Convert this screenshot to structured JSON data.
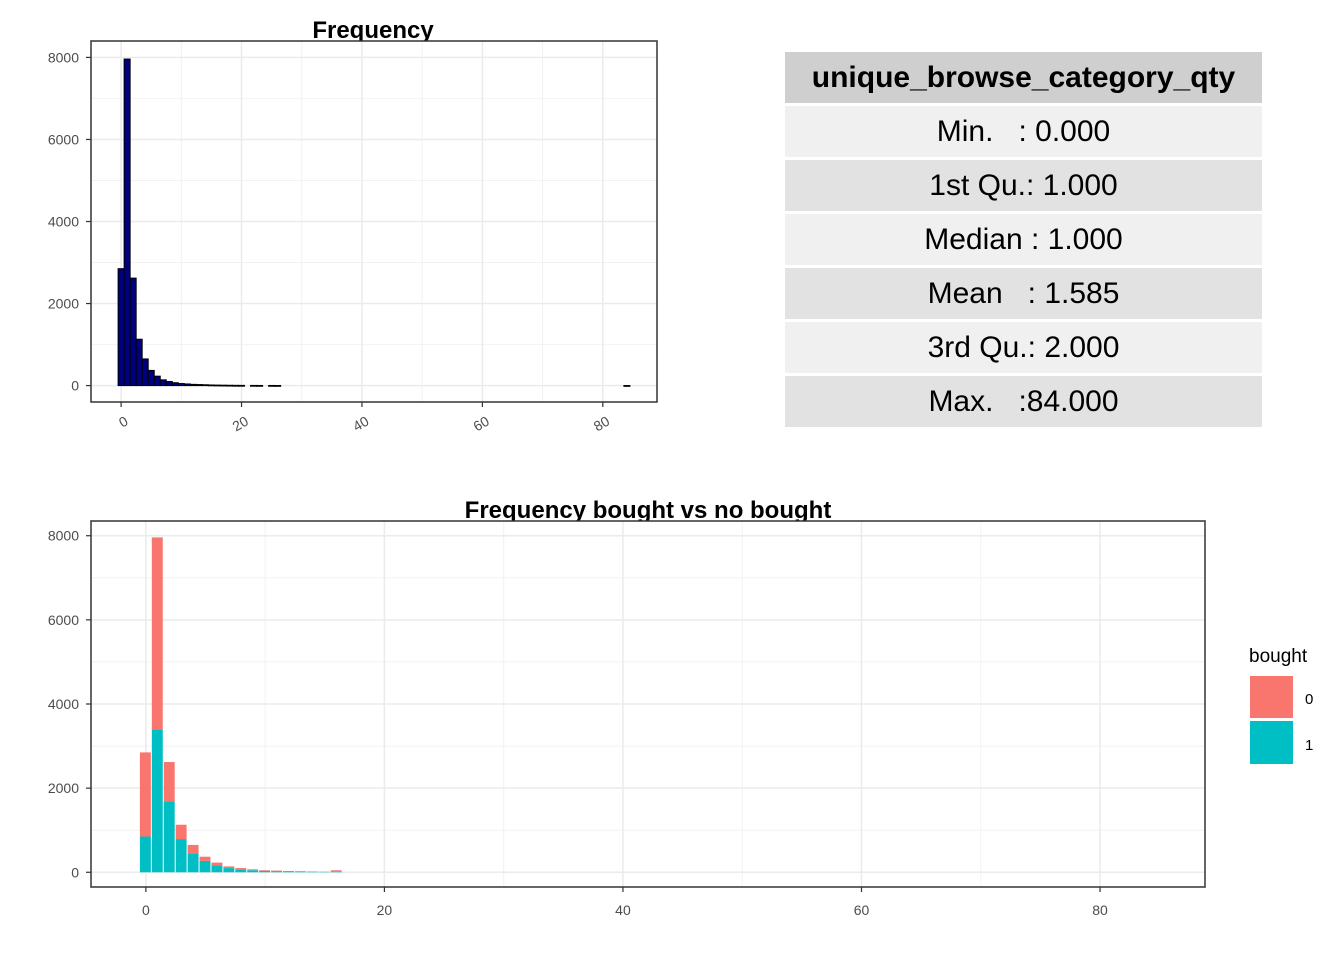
{
  "chart_data": [
    {
      "type": "bar",
      "title": "Frequency",
      "xlabel": "",
      "ylabel": "",
      "xlim": [
        -5,
        89
      ],
      "ylim": [
        -400,
        8400
      ],
      "xticks": [
        0,
        20,
        40,
        60,
        80
      ],
      "yticks": [
        0,
        2000,
        4000,
        6000,
        8000
      ],
      "bar_fill": "#00007f",
      "bar_edge": "#000000",
      "grid": true,
      "x": [
        0,
        1,
        2,
        3,
        4,
        5,
        6,
        7,
        8,
        9,
        10,
        11,
        12,
        13,
        14,
        15,
        16,
        17,
        18,
        19,
        20,
        22,
        23,
        25,
        26,
        84
      ],
      "values": [
        2850,
        7960,
        2620,
        1130,
        650,
        370,
        230,
        140,
        100,
        70,
        50,
        40,
        30,
        25,
        20,
        15,
        12,
        10,
        8,
        6,
        5,
        4,
        3,
        3,
        2,
        1
      ]
    },
    {
      "type": "bar",
      "title": "Frequency bought vs no bought",
      "xlabel": "",
      "ylabel": "",
      "xlim": [
        -4.6,
        88.8
      ],
      "ylim": [
        -350,
        8350
      ],
      "xticks": [
        0,
        20,
        40,
        60,
        80
      ],
      "yticks": [
        0,
        2000,
        4000,
        6000,
        8000
      ],
      "grid": true,
      "stacked": true,
      "legend": {
        "title": "bought",
        "position": "right"
      },
      "x": [
        0,
        1,
        2,
        3,
        4,
        5,
        6,
        7,
        8,
        9,
        10,
        11,
        12,
        13,
        14,
        15,
        16
      ],
      "series": [
        {
          "name": "0",
          "color": "#f8766d",
          "values": [
            2000,
            4560,
            930,
            340,
            200,
            100,
            70,
            40,
            30,
            20,
            15,
            12,
            10,
            8,
            6,
            5,
            40
          ]
        },
        {
          "name": "1",
          "color": "#00bfc4",
          "values": [
            850,
            3400,
            1690,
            790,
            450,
            270,
            160,
            100,
            70,
            50,
            35,
            28,
            20,
            17,
            14,
            10,
            8
          ]
        }
      ]
    }
  ],
  "summary_table": {
    "header": "unique_browse_category_qty",
    "rows": [
      "Min.   : 0.000",
      "1st Qu.: 1.000",
      "Median : 1.000",
      "Mean   : 1.585",
      "3rd Qu.: 2.000",
      "Max.   :84.000"
    ]
  }
}
